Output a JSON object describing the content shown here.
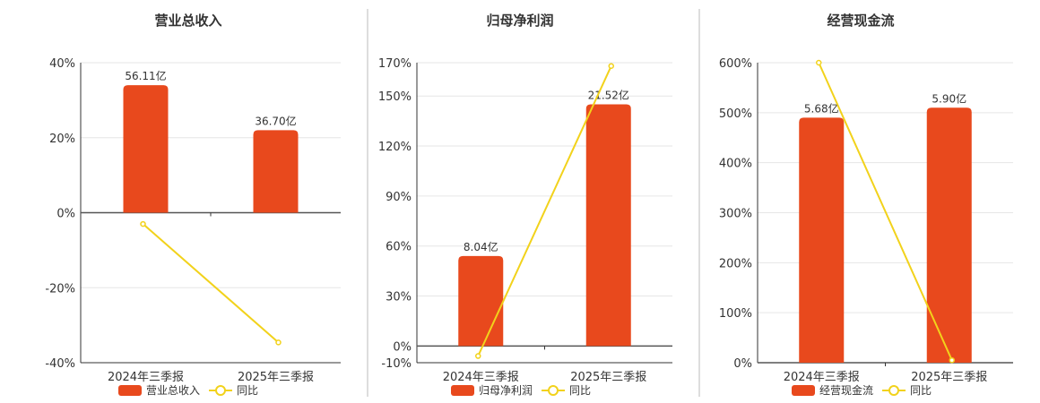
{
  "colors": {
    "bar": "#E8491D",
    "line": "#F2D21B"
  },
  "chart_data": [
    {
      "type": "bar",
      "title": "营业总收入",
      "categories": [
        "2024年三季报",
        "2025年三季报"
      ],
      "series": [
        {
          "name": "营业总收入",
          "kind": "bar",
          "values": [
            34,
            22
          ],
          "labels": [
            "56.11亿",
            "36.70亿"
          ]
        },
        {
          "name": "同比",
          "kind": "line",
          "values": [
            -3,
            -34.6
          ]
        }
      ],
      "yticks": [
        -40,
        -20,
        0,
        20,
        40
      ],
      "ytick_labels": [
        "-40%",
        "-20%",
        "0%",
        "20%",
        "40%"
      ],
      "ylim": [
        -40,
        40
      ],
      "grid": true,
      "legend": "bottom"
    },
    {
      "type": "bar",
      "title": "归母净利润",
      "categories": [
        "2024年三季报",
        "2025年三季报"
      ],
      "series": [
        {
          "name": "归母净利润",
          "kind": "bar",
          "values": [
            54,
            145
          ],
          "labels": [
            "8.04亿",
            "21.52亿"
          ]
        },
        {
          "name": "同比",
          "kind": "line",
          "values": [
            -6,
            168
          ]
        }
      ],
      "yticks": [
        -10,
        0,
        30,
        60,
        90,
        120,
        150,
        170
      ],
      "ytick_labels": [
        "-10%",
        "0%",
        "30%",
        "60%",
        "90%",
        "120%",
        "150%",
        "170%"
      ],
      "ylim": [
        -10,
        170
      ],
      "grid": true,
      "legend": "bottom"
    },
    {
      "type": "bar",
      "title": "经营现金流",
      "categories": [
        "2024年三季报",
        "2025年三季报"
      ],
      "series": [
        {
          "name": "经营现金流",
          "kind": "bar",
          "values": [
            490,
            510
          ],
          "labels": [
            "5.68亿",
            "5.90亿"
          ]
        },
        {
          "name": "同比",
          "kind": "line",
          "values": [
            600,
            5
          ]
        }
      ],
      "yticks": [
        0,
        100,
        200,
        300,
        400,
        500,
        600
      ],
      "ytick_labels": [
        "0%",
        "100%",
        "200%",
        "300%",
        "400%",
        "500%",
        "600%"
      ],
      "ylim": [
        0,
        600
      ],
      "grid": true,
      "legend": "bottom"
    }
  ]
}
